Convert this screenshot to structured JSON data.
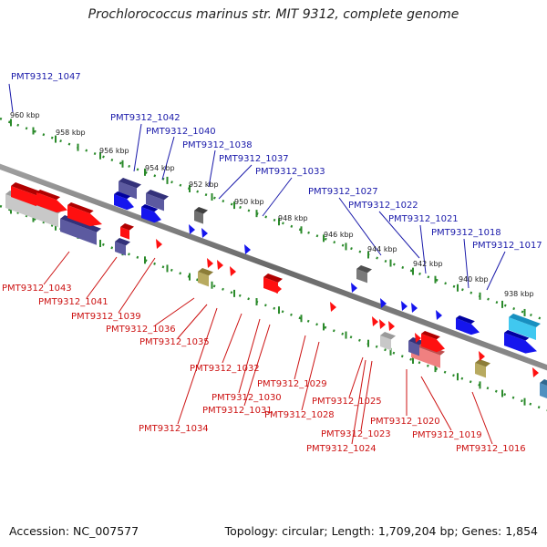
{
  "title": "Prochlorococcus marinus str. MIT 9312, complete genome",
  "footer": {
    "accession": "Accession: NC_007577",
    "topology": "Topology: circular; Length: 1,709,204 bp; Genes: 1,854"
  },
  "colors": {
    "top_labels": "#1a1aaa",
    "bottom_labels": "#cc1111",
    "forward_gene": "#ff0000",
    "reverse_gene": "#0000ee",
    "ruler_tick": "#2a8a2a",
    "backbone": "#7a7a7a"
  },
  "kbp_labels": [
    "960 kbp",
    "958 kbp",
    "956 kbp",
    "954 kbp",
    "952 kbp",
    "950 kbp",
    "948 kbp",
    "946 kbp",
    "944 kbp",
    "942 kbp",
    "940 kbp",
    "938 kbp"
  ],
  "top_genes": [
    "PMT9312_1047",
    "PMT9312_1042",
    "PMT9312_1040",
    "PMT9312_1038",
    "PMT9312_1037",
    "PMT9312_1033",
    "PMT9312_1027",
    "PMT9312_1022",
    "PMT9312_1021",
    "PMT9312_1018",
    "PMT9312_1017"
  ],
  "bottom_genes": [
    "PMT9312_1043",
    "PMT9312_1041",
    "PMT9312_1039",
    "PMT9312_1036",
    "PMT9312_1035",
    "PMT9312_1032",
    "PMT9312_1030",
    "PMT9312_1031",
    "PMT9312_1034",
    "PMT9312_1029",
    "PMT9312_1028",
    "PMT9312_1025",
    "PMT9312_1023",
    "PMT9312_1024",
    "PMT9312_1020",
    "PMT9312_1019",
    "PMT9312_1016"
  ]
}
